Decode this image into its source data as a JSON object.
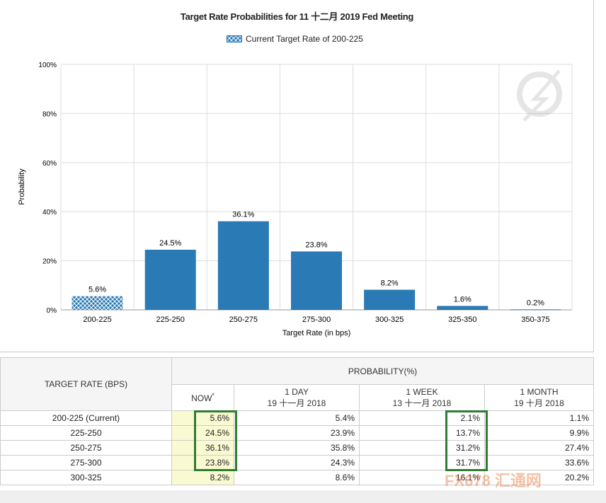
{
  "chart_data": {
    "type": "bar",
    "title": "Target Rate Probabilities for 11 十二月 2019  Fed Meeting",
    "legend": "Current Target Rate of 200-225",
    "xlabel": "Target Rate (in bps)",
    "ylabel": "Probability",
    "ylim": [
      0,
      100
    ],
    "yticks": [
      "0%",
      "20%",
      "40%",
      "60%",
      "80%",
      "100%"
    ],
    "categories": [
      "200-225",
      "225-250",
      "250-275",
      "275-300",
      "300-325",
      "325-350",
      "350-375"
    ],
    "values": [
      5.6,
      24.5,
      36.1,
      23.8,
      8.2,
      1.6,
      0.2
    ],
    "labels": [
      "5.6%",
      "24.5%",
      "36.1%",
      "23.8%",
      "8.2%",
      "1.6%",
      "0.2%"
    ],
    "current_index": 0,
    "bar_color": "#2a7ab5"
  },
  "table": {
    "header_rate": "TARGET RATE (BPS)",
    "header_prob": "PROBABILITY(%)",
    "cols": [
      {
        "l1": "NOW",
        "l2": "",
        "mark": "*"
      },
      {
        "l1": "1 DAY",
        "l2": "19 十一月 2018"
      },
      {
        "l1": "1 WEEK",
        "l2": "13 十一月 2018"
      },
      {
        "l1": "1 MONTH",
        "l2": "19 十月 2018"
      }
    ],
    "rows": [
      [
        "200-225 (Current)",
        "5.6%",
        "5.4%",
        "2.1%",
        "1.1%"
      ],
      [
        "225-250",
        "24.5%",
        "23.9%",
        "13.7%",
        "9.9%"
      ],
      [
        "250-275",
        "36.1%",
        "35.8%",
        "31.2%",
        "27.4%"
      ],
      [
        "275-300",
        "23.8%",
        "24.3%",
        "31.7%",
        "33.6%"
      ],
      [
        "300-325",
        "8.2%",
        "8.6%",
        "16.1%",
        "20.2%"
      ]
    ]
  },
  "watermark": "FX678 汇通网"
}
